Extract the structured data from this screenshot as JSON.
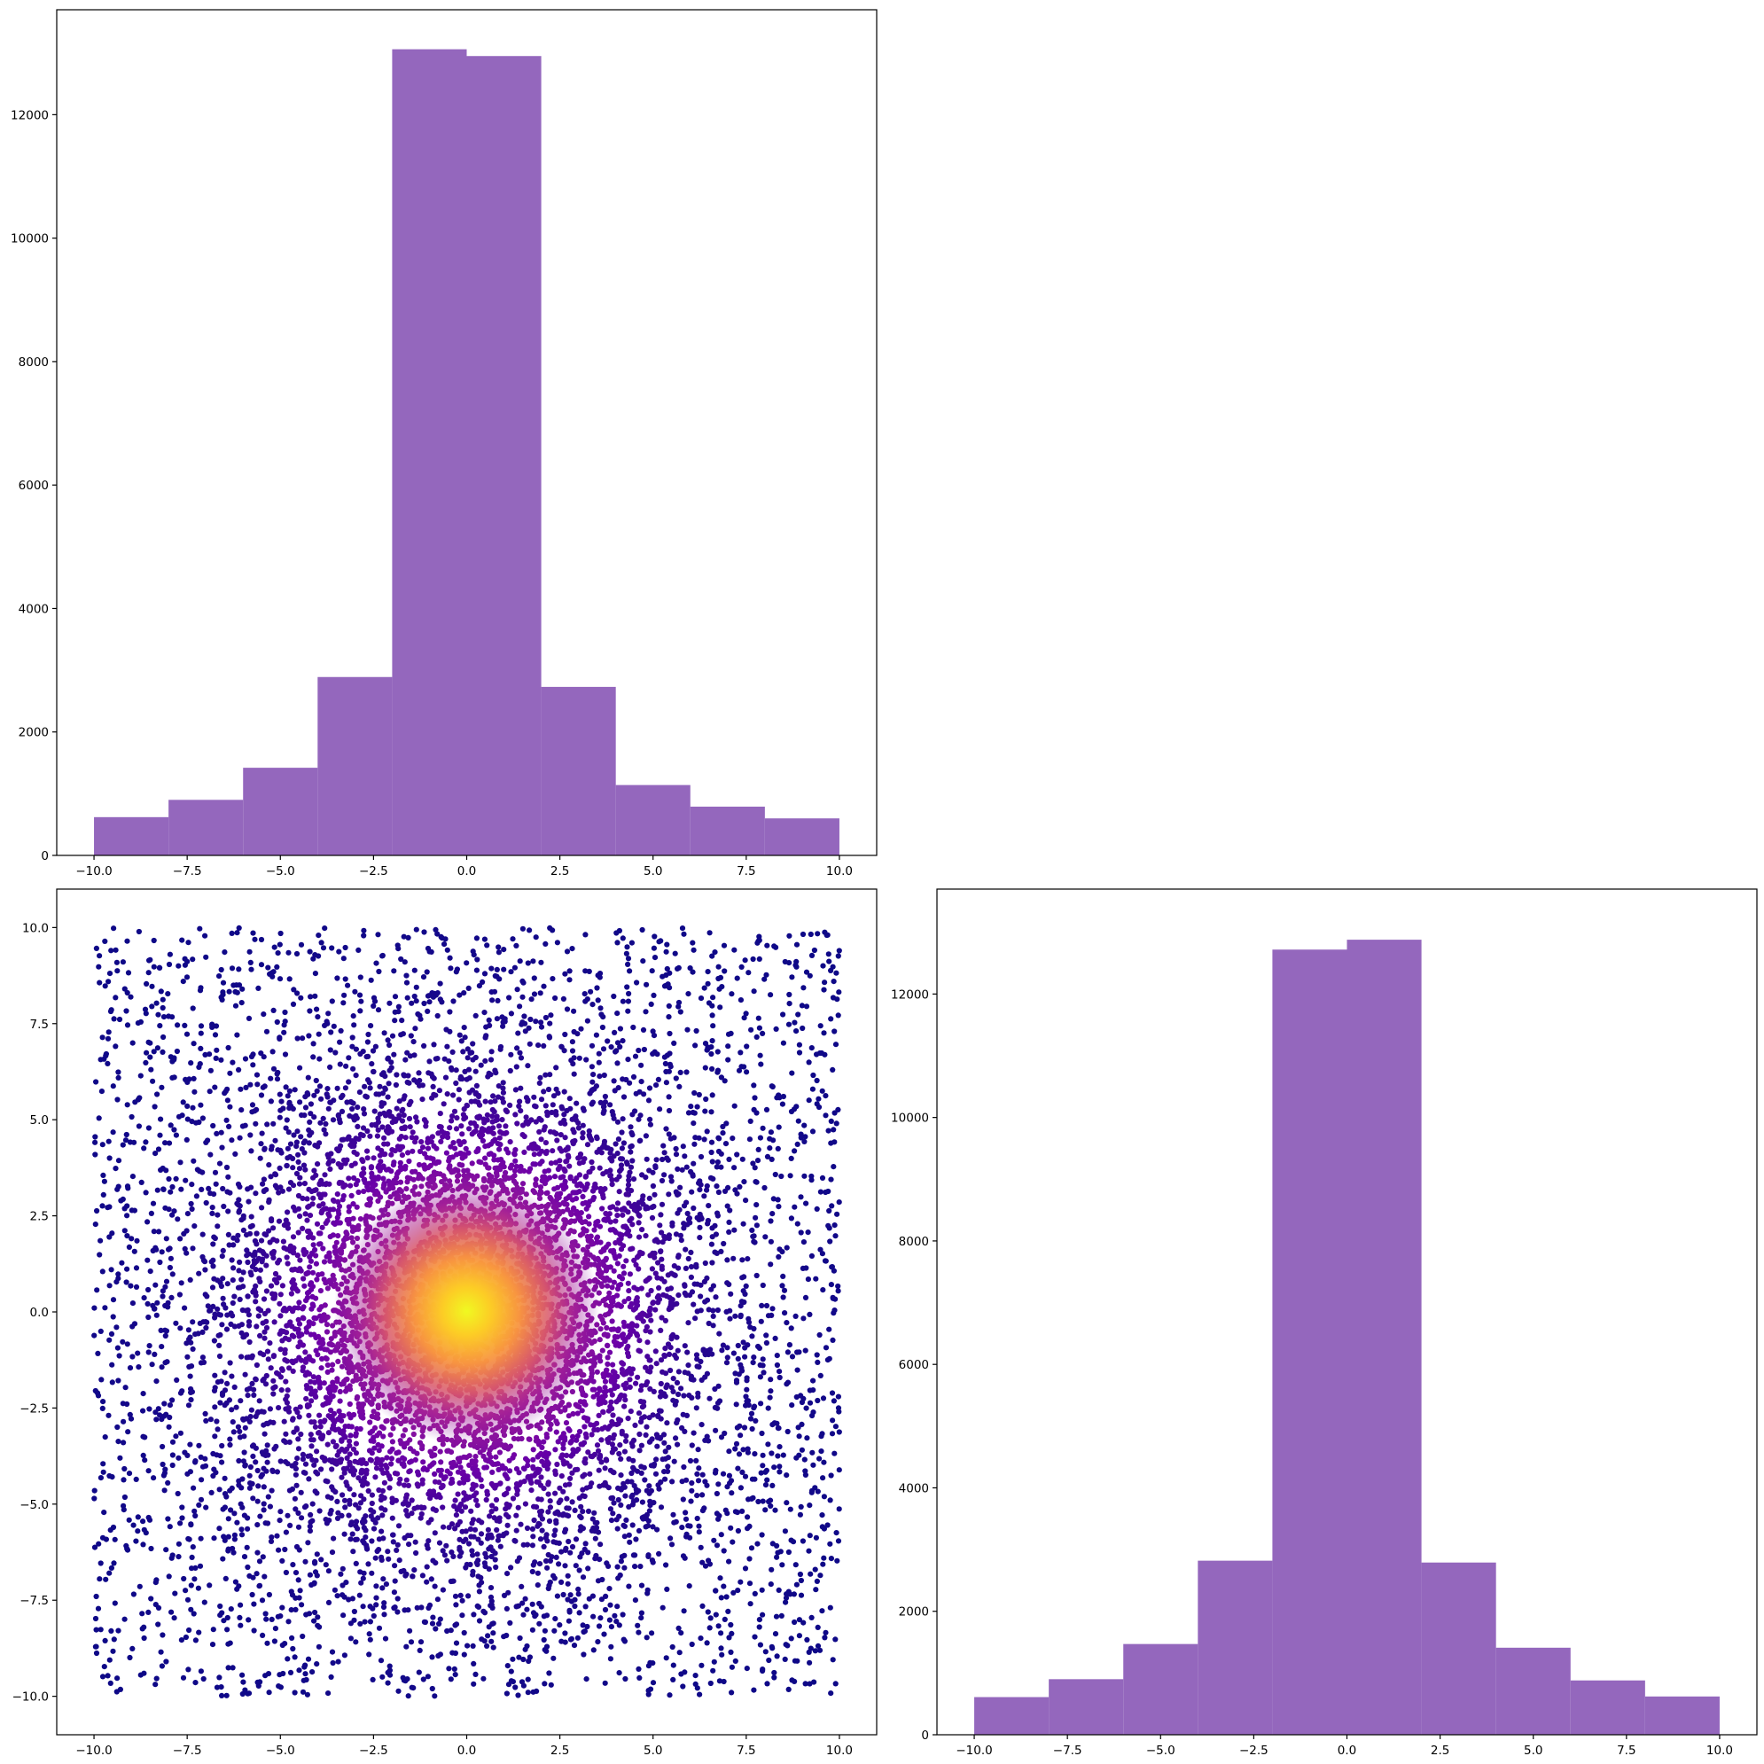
{
  "chart_data": [
    {
      "type": "bar",
      "subtype": "histogram",
      "panel": "top-left",
      "title": "",
      "xlabel": "",
      "ylabel": "",
      "bin_edges": [
        -10,
        -8,
        -6,
        -4,
        -2,
        0,
        2,
        4,
        6,
        8,
        10
      ],
      "values": [
        620,
        900,
        1420,
        2890,
        13060,
        12950,
        2730,
        1140,
        790,
        600
      ],
      "xlim": [
        -11,
        11
      ],
      "ylim": [
        0,
        13700
      ],
      "xticks": [
        -10,
        -7.5,
        -5,
        -2.5,
        0,
        2.5,
        5,
        7.5,
        10
      ],
      "xtick_labels": [
        "−10.0",
        "−7.5",
        "−5.0",
        "−2.5",
        "0.0",
        "2.5",
        "5.0",
        "7.5",
        "10.0"
      ],
      "yticks": [
        0,
        2000,
        4000,
        6000,
        8000,
        10000,
        12000
      ],
      "ytick_labels": [
        "0",
        "2000",
        "4000",
        "6000",
        "8000",
        "10000",
        "12000"
      ],
      "color": "#9467bd",
      "grid": false
    },
    {
      "type": "scatter",
      "panel": "bottom-left",
      "title": "",
      "xlabel": "",
      "ylabel": "",
      "description": "approx. 10000 points; density peaks at the origin and falls off radially, points colored by density with the plasma colormap",
      "xlim": [
        -11,
        11
      ],
      "ylim": [
        -11,
        11
      ],
      "xticks": [
        -10,
        -7.5,
        -5,
        -2.5,
        0,
        2.5,
        5,
        7.5,
        10
      ],
      "xtick_labels": [
        "−10.0",
        "−7.5",
        "−5.0",
        "−2.5",
        "0.0",
        "2.5",
        "5.0",
        "7.5",
        "10.0"
      ],
      "yticks": [
        10,
        7.5,
        5,
        2.5,
        0,
        -2.5,
        -5,
        -7.5,
        -10
      ],
      "ytick_labels": [
        "10.0",
        "7.5",
        "5.0",
        "2.5",
        "0.0",
        "−2.5",
        "−5.0",
        "−7.5",
        "−10.0"
      ],
      "colormap": [
        "#0d0887",
        "#6a00a8",
        "#b12a90",
        "#e16462",
        "#fca636",
        "#f0f921"
      ],
      "grid": false
    },
    {
      "type": "bar",
      "subtype": "histogram",
      "panel": "bottom-right",
      "title": "",
      "xlabel": "",
      "ylabel": "",
      "bin_edges": [
        -10,
        -8,
        -6,
        -4,
        -2,
        0,
        2,
        4,
        6,
        8,
        10
      ],
      "values": [
        610,
        900,
        1470,
        2820,
        12720,
        12880,
        2790,
        1410,
        880,
        620
      ],
      "xlim": [
        -11,
        11
      ],
      "ylim": [
        0,
        13700
      ],
      "xticks": [
        -10,
        -7.5,
        -5,
        -2.5,
        0,
        2.5,
        5,
        7.5,
        10
      ],
      "xtick_labels": [
        "−10.0",
        "−7.5",
        "−5.0",
        "−2.5",
        "0.0",
        "2.5",
        "5.0",
        "7.5",
        "10.0"
      ],
      "yticks": [
        0,
        2000,
        4000,
        6000,
        8000,
        10000,
        12000
      ],
      "ytick_labels": [
        "0",
        "2000",
        "4000",
        "6000",
        "8000",
        "10000",
        "12000"
      ],
      "color": "#9467bd",
      "grid": false
    }
  ]
}
